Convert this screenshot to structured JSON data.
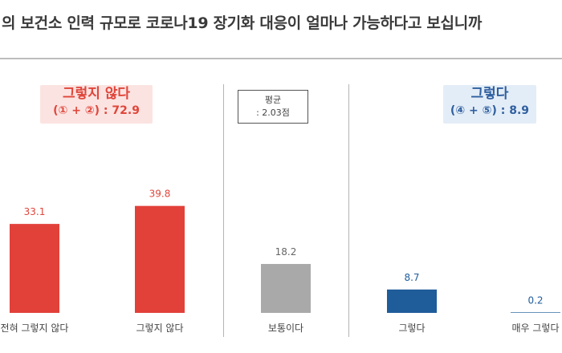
{
  "title": "의 보건소 인력 규모로 코로나19 장기화 대응이 얼마나 가능하다고 보십니까",
  "groups": {
    "negative": {
      "label": "그렇지 않다",
      "sum": "(① + ②) : 72.9"
    },
    "positive": {
      "label": "그렇다",
      "sum": "(④ + ⑤) : 8.9"
    }
  },
  "average": {
    "label": "평균",
    "value": ": 2.03점"
  },
  "colors": {
    "negative": "#e2413a",
    "neutral": "#a9a9a9",
    "positive": "#1f5c9a",
    "neg_text": "#e0463b",
    "neu_text": "#666666",
    "pos_text": "#1f5c9a"
  },
  "chart_data": {
    "type": "bar",
    "categories": [
      "전혀 그렇지 않다",
      "그렇지 않다",
      "보통이다",
      "그렇다",
      "매우 그렇다"
    ],
    "display_categories": [
      "전혀 그렇지 않다",
      "그렇지 않다",
      "보통이다",
      "그렇다",
      "매우 그렇다"
    ],
    "values": [
      33.1,
      39.8,
      18.2,
      8.7,
      0.2
    ],
    "value_labels": [
      "33.1",
      "39.8",
      "18.2",
      "8.7",
      "0.2"
    ],
    "bar_groups": [
      "negative",
      "negative",
      "neutral",
      "positive",
      "positive"
    ],
    "ylim": [
      0,
      40
    ]
  }
}
